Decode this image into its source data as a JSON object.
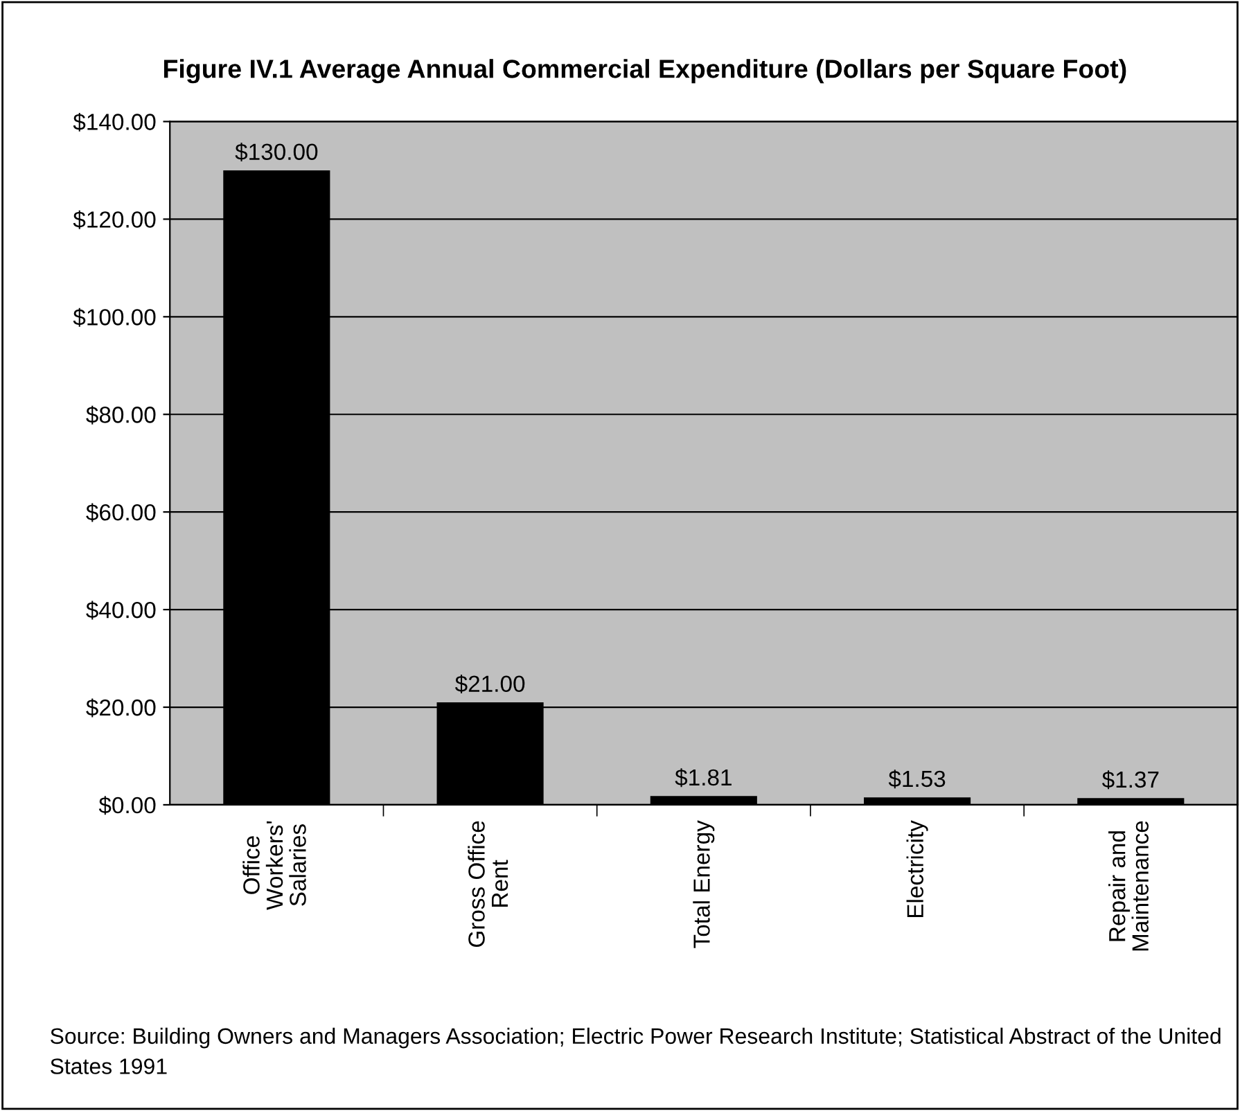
{
  "chart_data": {
    "type": "bar",
    "title": "Figure IV.1 Average Annual Commercial Expenditure (Dollars per Square Foot)",
    "categories": [
      "Office\nWorkers'\nSalaries",
      "Gross Office\nRent",
      "Total Energy",
      "Electricity",
      "Repair and\nMaintenance"
    ],
    "values": [
      130.0,
      21.0,
      1.81,
      1.53,
      1.37
    ],
    "value_labels": [
      "$130.00",
      "$21.00",
      "$1.81",
      "$1.53",
      "$1.37"
    ],
    "color": "#000000",
    "ylim": [
      0,
      140
    ],
    "yticks": [
      {
        "value": 0,
        "label": "$0.00"
      },
      {
        "value": 20,
        "label": "$20.00"
      },
      {
        "value": 40,
        "label": "$40.00"
      },
      {
        "value": 60,
        "label": "$60.00"
      },
      {
        "value": 80,
        "label": "$80.00"
      },
      {
        "value": 100,
        "label": "$100.00"
      },
      {
        "value": 120,
        "label": "$120.00"
      },
      {
        "value": 140,
        "label": "$140.00"
      }
    ],
    "grid": "y",
    "annotations": [
      "Source: Building Owners and Managers Association; Electric Power Research Institute; Statistical Abstract of the United States 1991"
    ]
  }
}
